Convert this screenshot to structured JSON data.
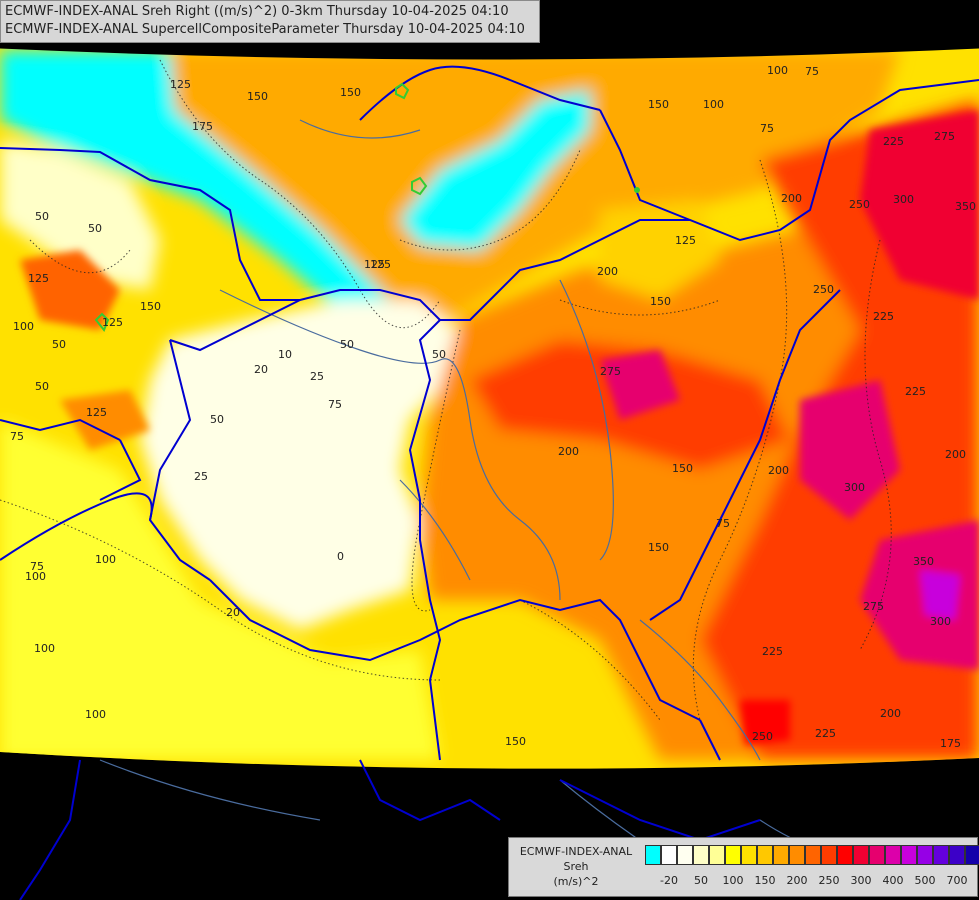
{
  "header": {
    "line1": "ECMWF-INDEX-ANAL Sreh Right ((m/s)^2) 0-3km Thursday 10-04-2025 04:10",
    "line2": "ECMWF-INDEX-ANAL SupercellCompositeParameter Thursday 10-04-2025 04:10"
  },
  "legend": {
    "title_line1": "ECMWF-INDEX-ANAL",
    "title_line2": "Sreh",
    "title_line3": "(m/s)^2",
    "colors": [
      "#00ffff",
      "#ffffff",
      "#fffff0",
      "#ffffc8",
      "#ffff96",
      "#ffff00",
      "#ffe100",
      "#ffc800",
      "#ffaa00",
      "#ff8c00",
      "#ff6400",
      "#ff3c00",
      "#ff0000",
      "#f00032",
      "#e6006e",
      "#dc00aa",
      "#c800dc",
      "#9600e6",
      "#6400dc",
      "#3c00c8",
      "#1400aa",
      "#000096"
    ],
    "ticks": [
      "-20",
      "50",
      "100",
      "150",
      "200",
      "250",
      "300",
      "400",
      "500",
      "700"
    ]
  },
  "map": {
    "contour_labels": [
      "150",
      "150",
      "100",
      "75",
      "125",
      "175",
      "150",
      "100",
      "225",
      "275",
      "50",
      "300",
      "350",
      "75",
      "50",
      "125",
      "200",
      "100",
      "50",
      "250",
      "125",
      "200",
      "125",
      "50",
      "50",
      "250",
      "150",
      "150",
      "150",
      "225",
      "125",
      "125",
      "125",
      "275",
      "75",
      "25",
      "20",
      "25",
      "50",
      "200",
      "100",
      "225",
      "200",
      "75",
      "50",
      "100",
      "20",
      "150",
      "75",
      "0",
      "300",
      "350",
      "275",
      "300",
      "75",
      "200",
      "100",
      "150",
      "225",
      "100",
      "200",
      "250",
      "175",
      "225",
      "10"
    ]
  },
  "colors": {
    "background": "#000000",
    "border_line": "#0000d0",
    "river": "#4a6c9e"
  }
}
